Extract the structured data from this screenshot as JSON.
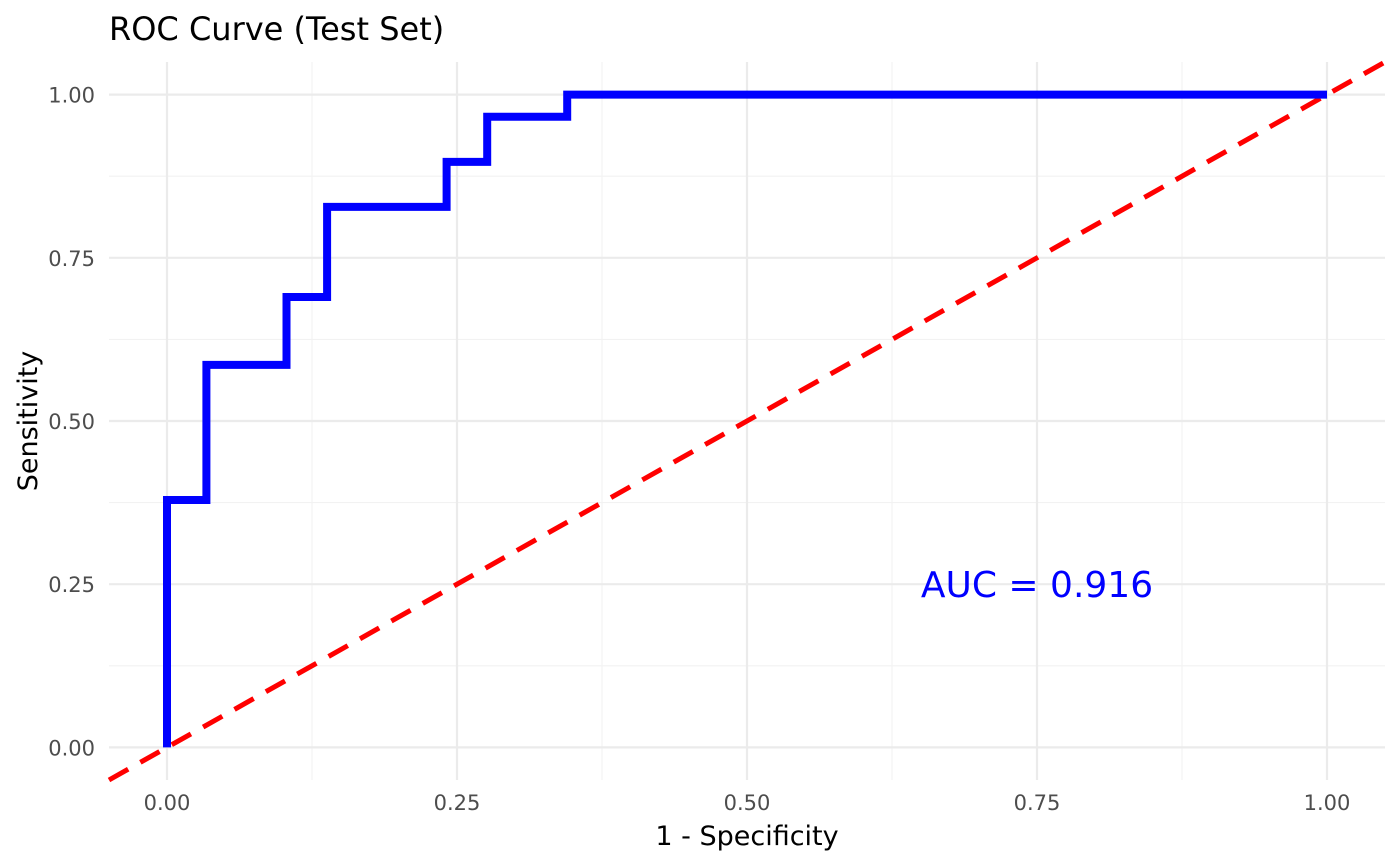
{
  "chart_data": {
    "type": "line",
    "title": "ROC Curve (Test Set)",
    "xlabel": "1 - Specificity",
    "ylabel": "Sensitivity",
    "xlim": [
      -0.05,
      1.05
    ],
    "ylim": [
      -0.05,
      1.05
    ],
    "x_ticks": [
      0,
      0.25,
      0.5,
      0.75,
      1
    ],
    "x_tick_labels": [
      "0.00",
      "0.25",
      "0.50",
      "0.75",
      "1.00"
    ],
    "y_ticks": [
      0,
      0.25,
      0.5,
      0.75,
      1
    ],
    "y_tick_labels": [
      "0.00",
      "0.25",
      "0.50",
      "0.75",
      "1.00"
    ],
    "grid": true,
    "series": [
      {
        "style": "step",
        "color": "#0000ff",
        "x": [
          0,
          0,
          0.034,
          0.034,
          0.103,
          0.103,
          0.138,
          0.138,
          0.241,
          0.241,
          0.276,
          0.276,
          0.345,
          0.345,
          1.0
        ],
        "y": [
          0,
          0.379,
          0.379,
          0.586,
          0.586,
          0.69,
          0.69,
          0.828,
          0.828,
          0.897,
          0.897,
          0.966,
          0.966,
          1.0,
          1.0
        ]
      },
      {
        "style": "dashed",
        "color": "#ff0000",
        "x": [
          -0.05,
          1.05
        ],
        "y": [
          -0.05,
          1.05
        ]
      }
    ],
    "annotations": [
      {
        "text": "AUC = 0.916",
        "x": 0.75,
        "y": 0.25,
        "color": "#0000ff"
      }
    ]
  }
}
